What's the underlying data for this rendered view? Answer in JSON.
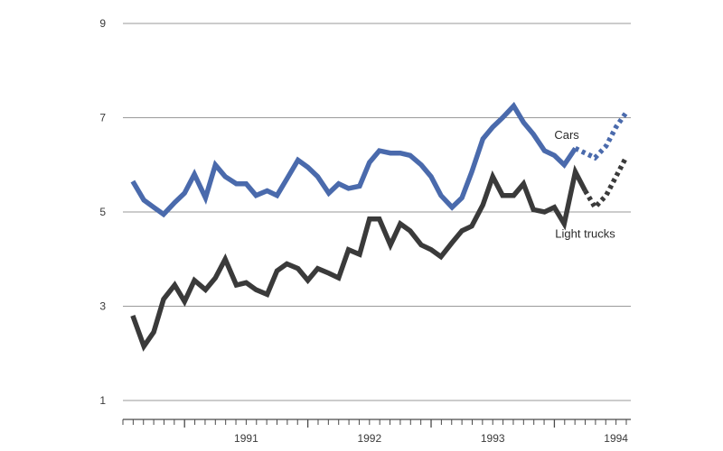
{
  "chart_data": {
    "type": "line",
    "ylim": [
      1,
      9
    ],
    "y_ticks": [
      1,
      3,
      5,
      7,
      9
    ],
    "y_tick_labels": [
      "1",
      "3",
      "5",
      "7",
      "9"
    ],
    "x_range": [
      1990.5,
      1994.62
    ],
    "x_year_labels": [
      {
        "x": 1991,
        "label": "1991"
      },
      {
        "x": 1992,
        "label": "1992"
      },
      {
        "x": 1993,
        "label": "1993"
      },
      {
        "x": 1994,
        "label": "1994"
      }
    ],
    "grid": true,
    "series": [
      {
        "name": "Cars",
        "color": "#4a6aac",
        "x": [
          1990.58,
          1990.67,
          1990.75,
          1990.83,
          1990.92,
          1991.0,
          1991.08,
          1991.17,
          1991.25,
          1991.33,
          1991.42,
          1991.5,
          1991.58,
          1991.67,
          1991.75,
          1991.83,
          1991.92,
          1992.0,
          1992.08,
          1992.17,
          1992.25,
          1992.33,
          1992.42,
          1992.5,
          1992.58,
          1992.67,
          1992.75,
          1992.83,
          1992.92,
          1993.0,
          1993.08,
          1993.17,
          1993.25,
          1993.33,
          1993.42,
          1993.5,
          1993.58,
          1993.67,
          1993.75,
          1993.83,
          1993.92,
          1994.0,
          1994.08,
          1994.17
        ],
        "values": [
          5.65,
          5.25,
          5.1,
          4.95,
          5.2,
          5.4,
          5.8,
          5.3,
          6.0,
          5.75,
          5.6,
          5.6,
          5.35,
          5.45,
          5.35,
          5.7,
          6.1,
          5.95,
          5.75,
          5.4,
          5.6,
          5.5,
          5.55,
          6.05,
          6.3,
          6.25,
          6.25,
          6.2,
          6.0,
          5.75,
          5.35,
          5.1,
          5.3,
          5.85,
          6.55,
          6.8,
          7.0,
          7.25,
          6.9,
          6.65,
          6.3,
          6.2,
          6.0,
          6.35
        ],
        "projected_x": [
          1994.17,
          1994.25,
          1994.33,
          1994.42,
          1994.5,
          1994.58
        ],
        "projected_values": [
          6.35,
          6.25,
          6.15,
          6.4,
          6.8,
          7.1
        ]
      },
      {
        "name": "Light trucks",
        "color": "#3a3a3a",
        "x": [
          1990.58,
          1990.67,
          1990.75,
          1990.83,
          1990.92,
          1991.0,
          1991.08,
          1991.17,
          1991.25,
          1991.33,
          1991.42,
          1991.5,
          1991.58,
          1991.67,
          1991.75,
          1991.83,
          1991.92,
          1992.0,
          1992.08,
          1992.17,
          1992.25,
          1992.33,
          1992.42,
          1992.5,
          1992.58,
          1992.67,
          1992.75,
          1992.83,
          1992.92,
          1993.0,
          1993.08,
          1993.17,
          1993.25,
          1993.33,
          1993.42,
          1993.5,
          1993.58,
          1993.67,
          1993.75,
          1993.83,
          1993.92,
          1994.0,
          1994.08,
          1994.17,
          1994.25
        ],
        "values": [
          2.8,
          2.15,
          2.45,
          3.15,
          3.45,
          3.1,
          3.55,
          3.35,
          3.6,
          4.0,
          3.45,
          3.5,
          3.35,
          3.25,
          3.75,
          3.9,
          3.8,
          3.55,
          3.8,
          3.7,
          3.6,
          4.2,
          4.1,
          4.85,
          4.85,
          4.3,
          4.75,
          4.6,
          4.3,
          4.2,
          4.05,
          4.35,
          4.6,
          4.7,
          5.15,
          5.75,
          5.35,
          5.35,
          5.6,
          5.05,
          5.0,
          5.1,
          4.75,
          5.85,
          5.45
        ],
        "projected_x": [
          1994.25,
          1994.33,
          1994.42,
          1994.5,
          1994.58
        ],
        "projected_values": [
          5.45,
          5.1,
          5.35,
          5.75,
          6.15
        ]
      }
    ],
    "annotations": [
      {
        "text": "Cars",
        "series": "Cars",
        "anchor_x": 1994.1,
        "anchor_y": 6.55
      },
      {
        "text": "Light trucks",
        "series": "Light trucks",
        "anchor_x": 1994.25,
        "anchor_y": 4.45
      }
    ]
  }
}
